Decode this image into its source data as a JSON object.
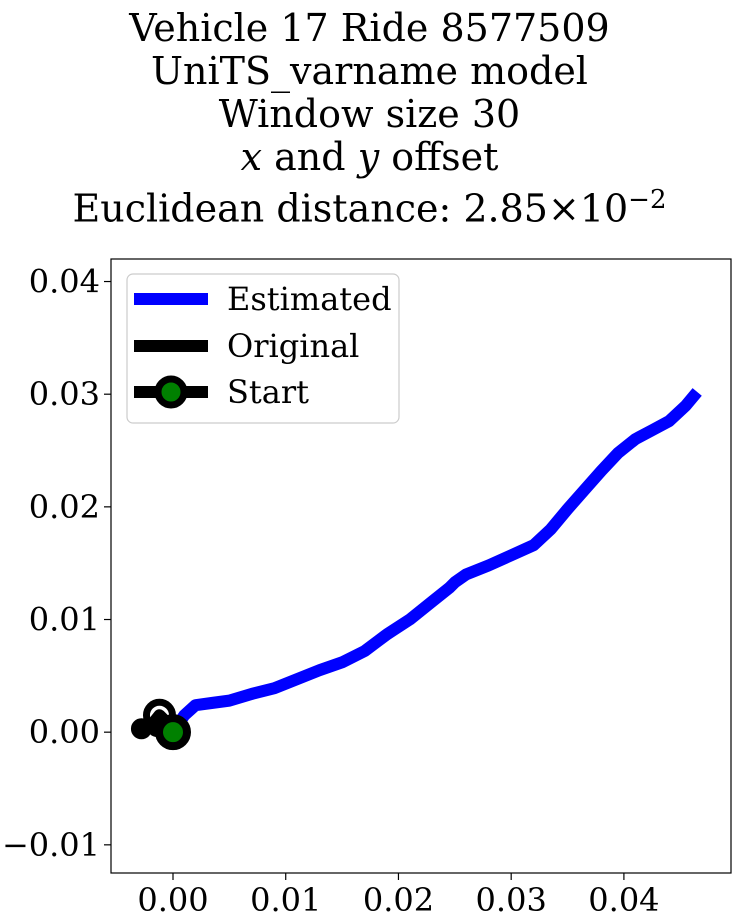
{
  "title": {
    "line1": "Vehicle 17 Ride 8577509",
    "line2": "UniTS_varname model",
    "line3": "Window size 30",
    "line4_x": "x",
    "line4_and": " and ",
    "line4_y": "y",
    "line4_rest": " offset",
    "line5_prefix": "Euclidean distance: 2.85",
    "line5_times": "×",
    "line5_base": "10",
    "line5_exp": "−2"
  },
  "colors": {
    "estimated": "#0000ff",
    "original": "#000000",
    "start_marker_fill": "#008000",
    "start_marker_edge": "#000000"
  },
  "chart_data": {
    "type": "line",
    "xlim": [
      -0.0055,
      0.0495
    ],
    "ylim": [
      -0.0125,
      0.042
    ],
    "xticks": [
      0.0,
      0.01,
      0.02,
      0.03,
      0.04
    ],
    "xtick_labels": [
      "0.00",
      "0.01",
      "0.02",
      "0.03",
      "0.04"
    ],
    "yticks": [
      -0.01,
      0.0,
      0.01,
      0.02,
      0.03,
      0.04
    ],
    "ytick_labels": [
      "−0.01",
      "0.00",
      "0.01",
      "0.02",
      "0.03",
      "0.04"
    ],
    "legend_position": "upper-left",
    "legend": [
      "Estimated",
      "Original",
      "Start"
    ],
    "series": [
      {
        "name": "Estimated",
        "x": [
          0.0,
          0.001,
          0.002,
          0.0035,
          0.005,
          0.007,
          0.009,
          0.011,
          0.013,
          0.015,
          0.017,
          0.019,
          0.021,
          0.023,
          0.0245,
          0.025,
          0.026,
          0.028,
          0.03,
          0.032,
          0.0335,
          0.035,
          0.0365,
          0.038,
          0.0395,
          0.041,
          0.0425,
          0.044,
          0.0455,
          0.0465
        ],
        "y": [
          0.0,
          0.0015,
          0.0024,
          0.0026,
          0.0028,
          0.0034,
          0.0039,
          0.0047,
          0.0055,
          0.0062,
          0.0072,
          0.0087,
          0.01,
          0.0116,
          0.0128,
          0.0133,
          0.014,
          0.0148,
          0.0157,
          0.0166,
          0.018,
          0.0198,
          0.0215,
          0.0232,
          0.0248,
          0.026,
          0.0268,
          0.0276,
          0.029,
          0.0302
        ]
      },
      {
        "name": "Original",
        "x": [
          -0.0028,
          -0.002,
          -0.0012,
          -0.0006,
          0.0
        ],
        "y": [
          0.0003,
          0.0005,
          0.0015,
          0.0009,
          0.0
        ]
      }
    ],
    "start": {
      "x": 0.0,
      "y": 0.0
    },
    "original_markers": [
      {
        "x": -0.0028,
        "y": 0.0003
      },
      {
        "x": -0.0012,
        "y": 0.0015
      },
      {
        "x": -0.0014,
        "y": 0.0005
      }
    ]
  }
}
